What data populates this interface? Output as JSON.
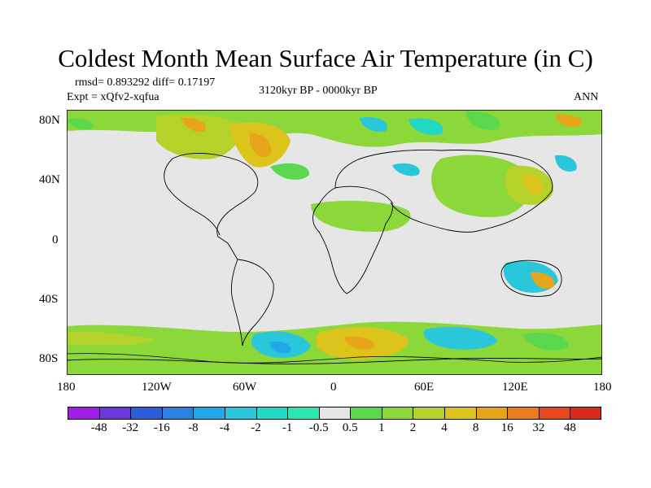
{
  "title": "Coldest Month Mean Surface Air Temperature (in C)",
  "stats": "rmsd= 0.893292 diff= 0.17197",
  "experiment": "Expt = xQfv2-xqfua",
  "period": "3120kyr BP - 0000kyr BP",
  "season": "ANN",
  "lat_labels": [
    "80N",
    "40N",
    "0",
    "40S",
    "80S"
  ],
  "lon_labels": [
    "180",
    "120W",
    "60W",
    "0",
    "60E",
    "120E",
    "180"
  ],
  "colorbar": {
    "levels": [
      "-48",
      "-32",
      "-16",
      "-8",
      "-4",
      "-2",
      "-1",
      "-0.5",
      "0.5",
      "1",
      "2",
      "4",
      "8",
      "16",
      "32",
      "48"
    ],
    "colors": [
      "#9e20e6",
      "#6a3ad8",
      "#2e5ed6",
      "#2a83e2",
      "#21a7e8",
      "#2ac7db",
      "#22d8c4",
      "#2ee6b0",
      "#e6e6e6",
      "#5cd84e",
      "#8cd73a",
      "#b5d22a",
      "#dcc41d",
      "#e8a51b",
      "#ea7b1f",
      "#e64a1c",
      "#d92a1a"
    ]
  }
}
